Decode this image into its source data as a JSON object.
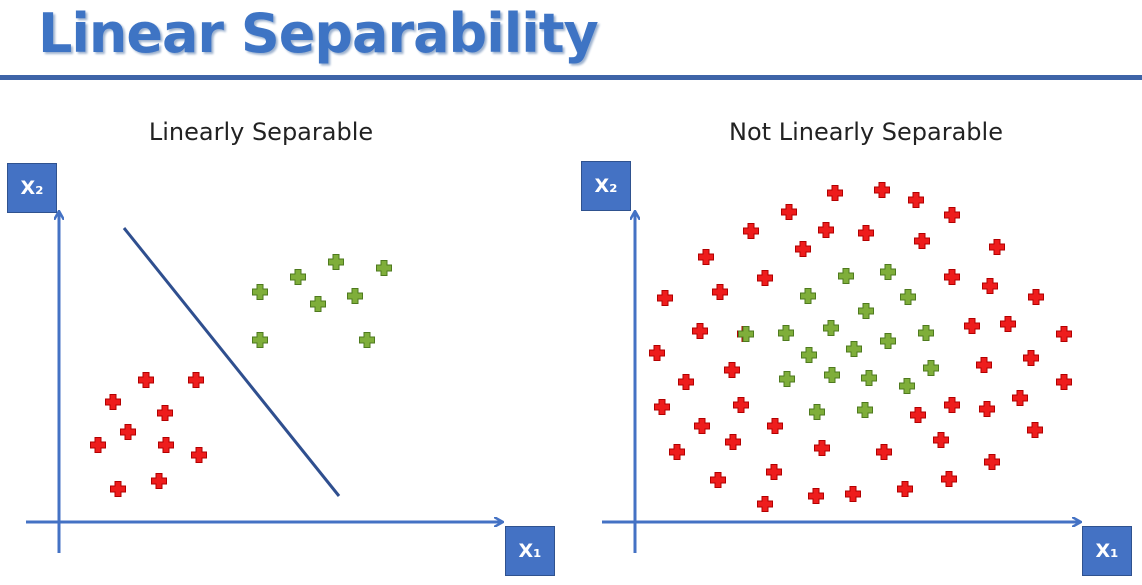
{
  "slide": {
    "title": "Linear Separability"
  },
  "panels": [
    {
      "title": "Linearly Separable",
      "x_axis_label": "X₁",
      "y_axis_label": "X₂"
    },
    {
      "title": "Not Linearly Separable",
      "x_axis_label": "X₁",
      "y_axis_label": "X₂"
    }
  ],
  "colors": {
    "class_red": "#ee1c1c",
    "class_green": "#7fae3a",
    "axis": "#4472c4",
    "separator": "#2f4f8f",
    "title": "#3e74c4"
  },
  "icons": {
    "point_marker": "plus-icon"
  }
}
